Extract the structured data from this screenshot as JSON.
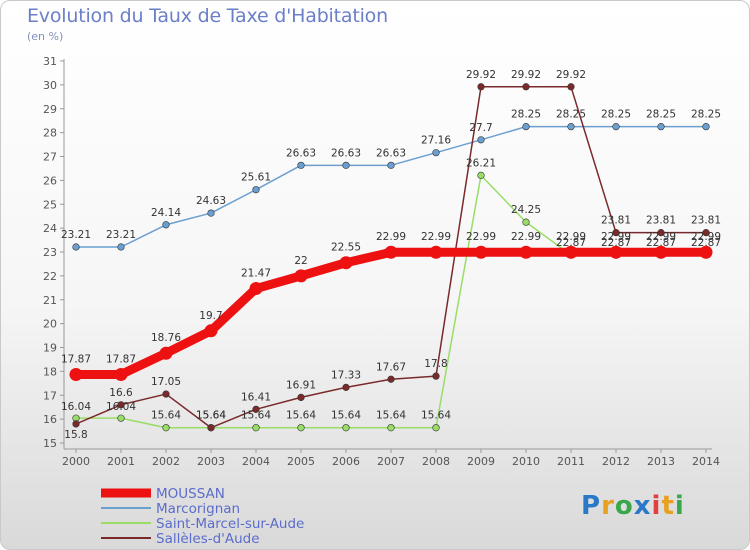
{
  "title": "Evolution du Taux de Taxe d'Habitation",
  "subtitle": "(en %)",
  "logo": "Proxiti",
  "chart_data": {
    "type": "line",
    "title": "Evolution du Taux de Taxe d'Habitation",
    "ylabel": "(en %)",
    "xlabel": "",
    "ylim": [
      15,
      31
    ],
    "yticks": [
      15,
      16,
      17,
      18,
      19,
      20,
      21,
      22,
      23,
      24,
      25,
      26,
      27,
      28,
      29,
      30,
      31
    ],
    "x": [
      2000,
      2001,
      2002,
      2003,
      2004,
      2005,
      2006,
      2007,
      2008,
      2009,
      2010,
      2011,
      2012,
      2013,
      2014
    ],
    "grid": false,
    "legend_position": "bottom-left",
    "series": [
      {
        "name": "MOUSSAN",
        "color": "#ee1111",
        "emphasis": true,
        "values": [
          17.87,
          17.87,
          18.76,
          19.7,
          21.47,
          22,
          22.55,
          22.99,
          22.99,
          22.99,
          22.99,
          22.99,
          22.99,
          22.99,
          22.99
        ],
        "labels": [
          "17.87",
          "17.87",
          "18.76",
          "19.7",
          "21.47",
          "22",
          "22.55",
          "22.99",
          "22.99",
          "22.99",
          "22.99",
          "22.99",
          "22.99",
          "22.99",
          "22.99"
        ]
      },
      {
        "name": "Marcorignan",
        "color": "#6b9fd0",
        "values": [
          23.21,
          23.21,
          24.14,
          24.63,
          25.61,
          26.63,
          26.63,
          26.63,
          27.16,
          27.7,
          28.25,
          28.25,
          28.25,
          28.25,
          28.25
        ],
        "labels": [
          "23.21",
          "23.21",
          "24.14",
          "24.63",
          "25.61",
          "26.63",
          "26.63",
          "26.63",
          "27.16",
          "27.7",
          "28.25",
          "28.25",
          "28.25",
          "28.25",
          "28.25"
        ]
      },
      {
        "name": "Saint-Marcel-sur-Aude",
        "color": "#99dd66",
        "values": [
          16.04,
          16.04,
          15.64,
          15.64,
          15.64,
          15.64,
          15.64,
          15.64,
          15.64,
          26.21,
          24.25,
          22.87,
          22.87,
          22.87,
          22.87
        ],
        "labels": [
          "16.04",
          "16.04",
          "15.64",
          "15.64",
          "15.64",
          "15.64",
          "15.64",
          "15.64",
          "15.64",
          "26.21",
          "24.25",
          "22.87",
          "22.87",
          "22.87",
          "22.87"
        ]
      },
      {
        "name": "Sallèles-d'Aude",
        "color": "#7a2a2a",
        "values": [
          15.8,
          16.6,
          17.05,
          15.64,
          16.41,
          16.91,
          17.33,
          17.67,
          17.8,
          29.92,
          29.92,
          29.92,
          23.81,
          23.81,
          23.81
        ],
        "labels": [
          "15.8",
          "16.6",
          "17.05",
          "15.64",
          "16.41",
          "16.91",
          "17.33",
          "17.67",
          "17.8",
          "29.92",
          "29.92",
          "29.92",
          "23.81",
          "23.81",
          "23.81"
        ]
      }
    ]
  }
}
